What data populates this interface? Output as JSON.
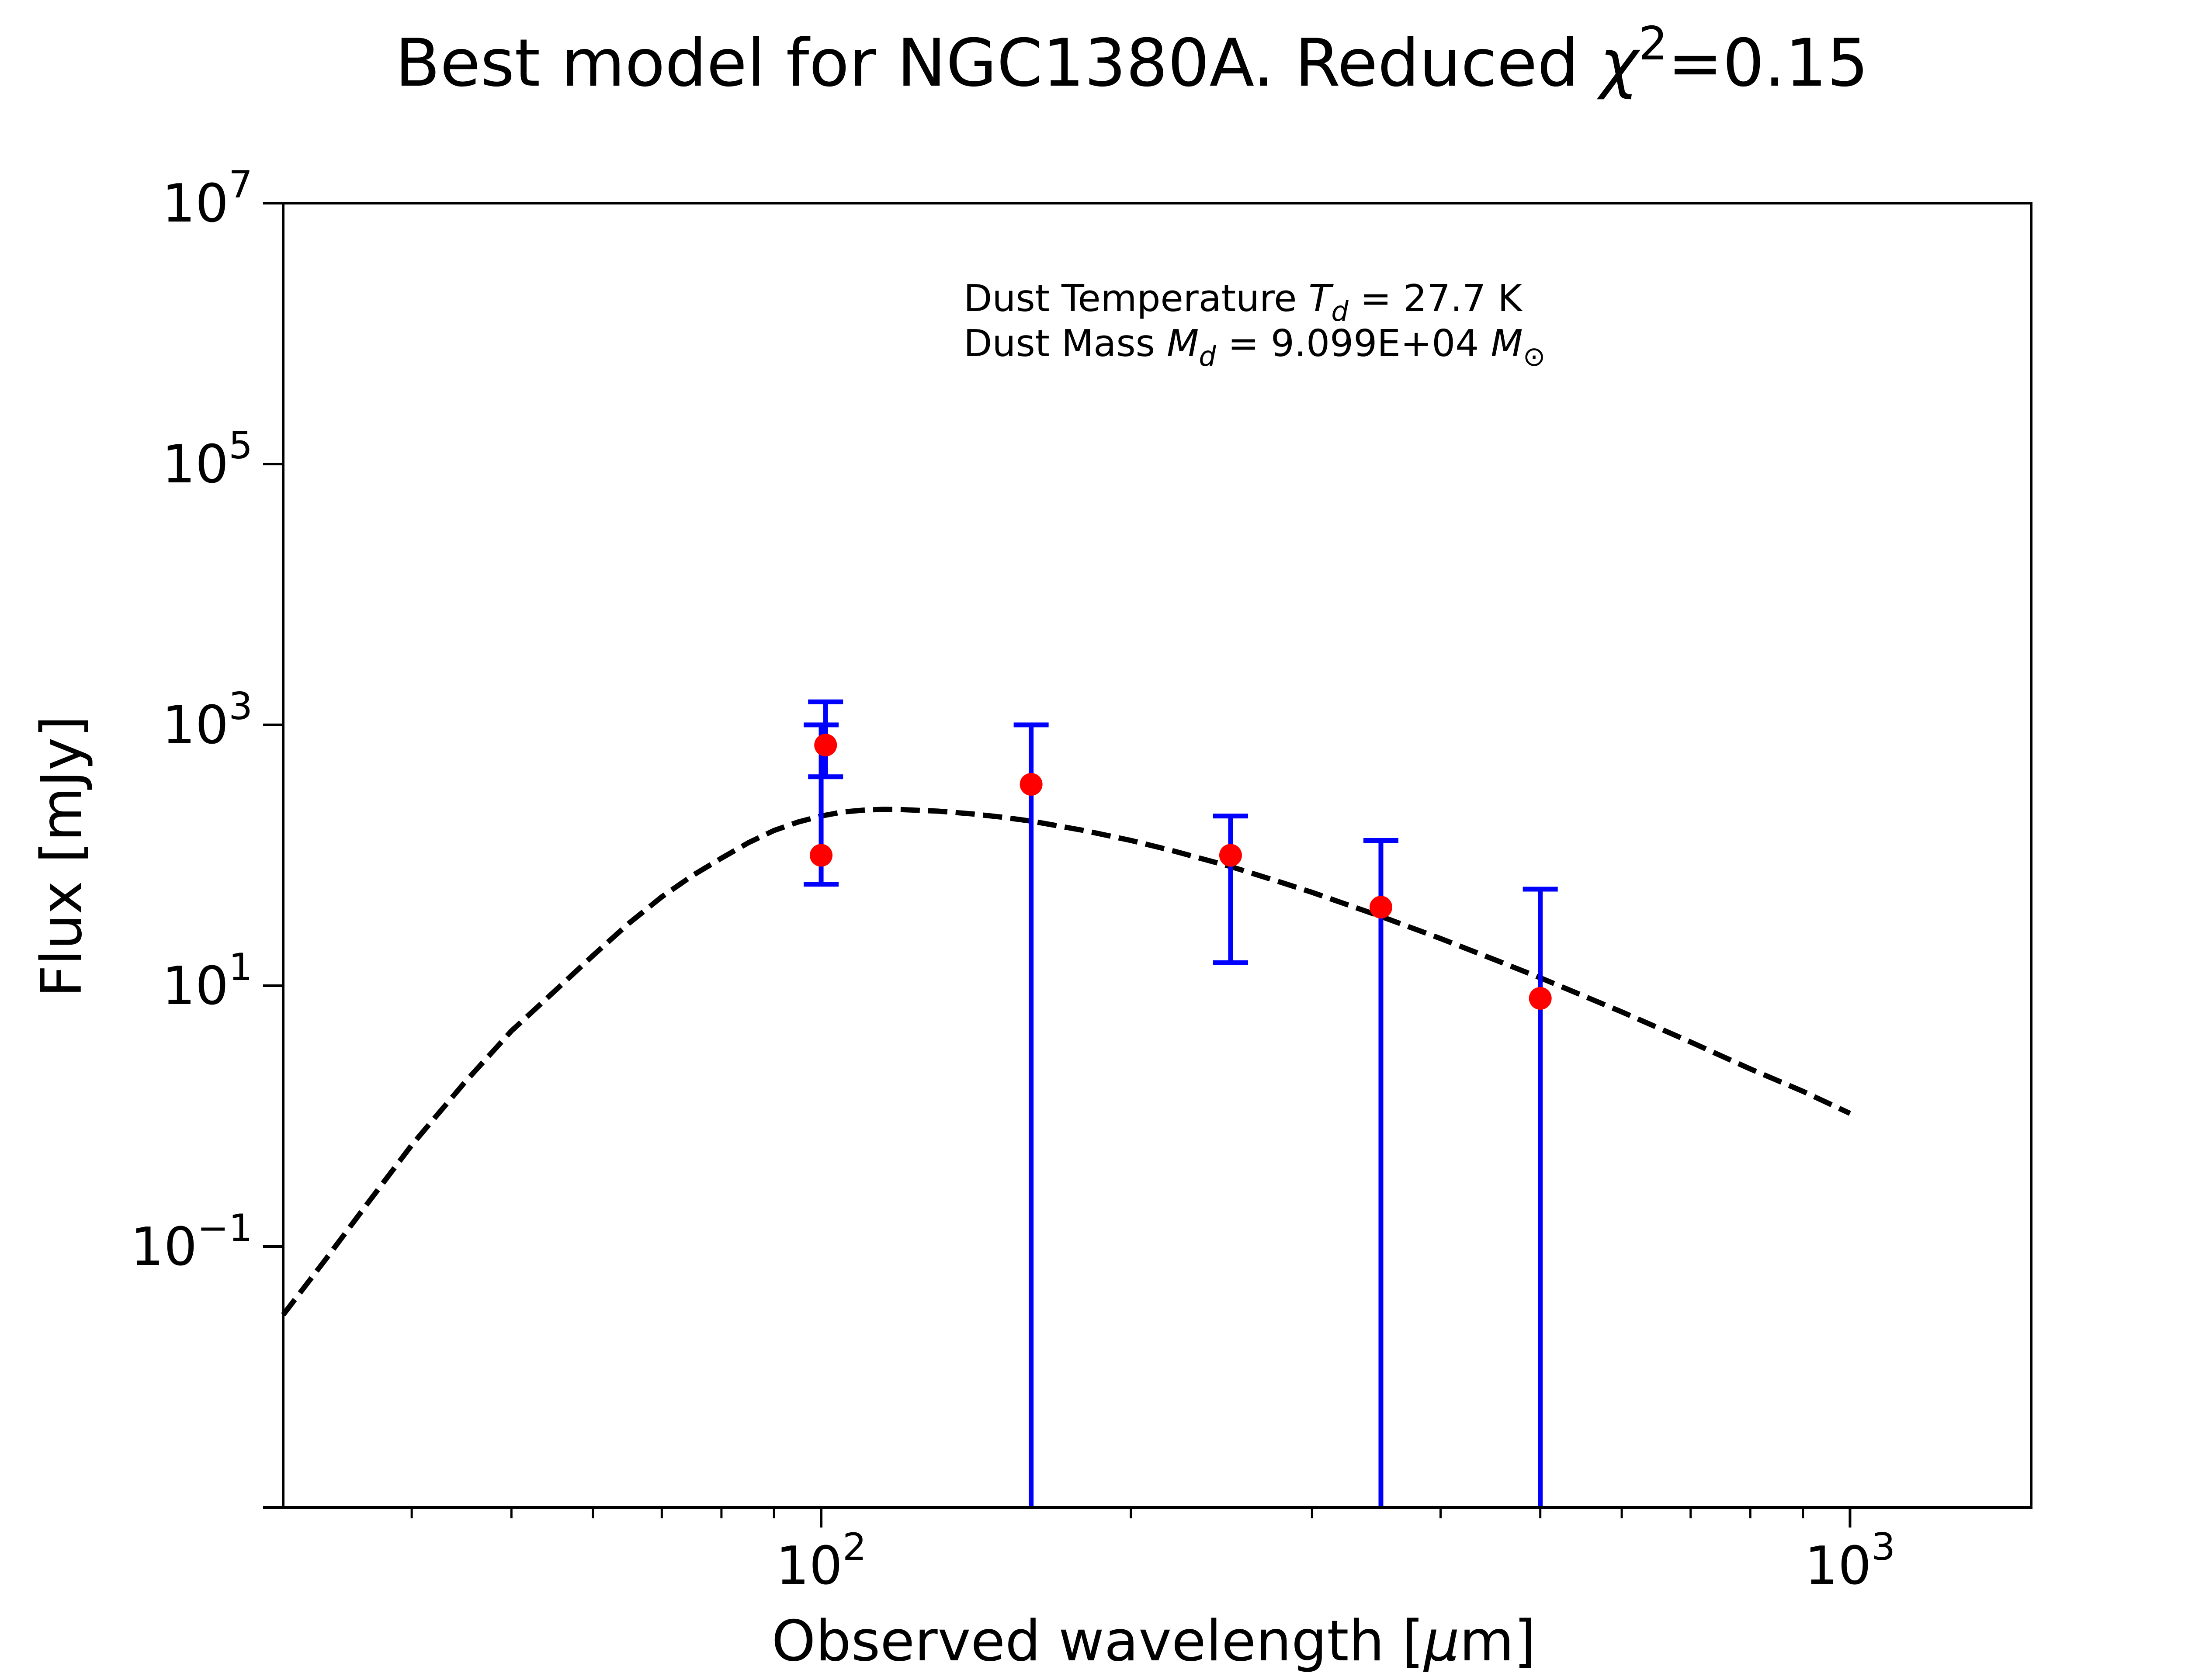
{
  "chart_data": {
    "type": "scatter",
    "title": {
      "prefix": "Best model for NGC1380A. Reduced ",
      "chi": "χ",
      "sup": "2",
      "suffix": "=0.15"
    },
    "xlabel": {
      "prefix": "Observed wavelength [",
      "mu": "μ",
      "suffix": "m]"
    },
    "ylabel": "Flux [mJy]",
    "x_scale": "log",
    "y_scale": "log",
    "xlim": [
      30,
      1500
    ],
    "ylim": [
      0.001,
      10000000
    ],
    "x_ticks": [
      {
        "value": 100,
        "base": "10",
        "exp": "2"
      },
      {
        "value": 1000,
        "base": "10",
        "exp": "3"
      }
    ],
    "y_ticks": [
      {
        "value": 0.1,
        "base": "10",
        "exp": "−1"
      },
      {
        "value": 10,
        "base": "10",
        "exp": "1"
      },
      {
        "value": 1000,
        "base": "10",
        "exp": "3"
      },
      {
        "value": 100000,
        "base": "10",
        "exp": "5"
      },
      {
        "value": 10000000,
        "base": "10",
        "exp": "7"
      }
    ],
    "annotation": {
      "line1": {
        "text": "Dust Temperature ",
        "sym": "T",
        "sub": "d",
        "value": " = 27.7 K"
      },
      "line2": {
        "text": "Dust Mass ",
        "sym": "M",
        "sub": "d",
        "value": " = 9.099E+04 ",
        "unit": "M",
        "unit_sub": "⊙"
      }
    },
    "observations": [
      {
        "x": 100,
        "y": 100,
        "yerr_low": 60,
        "yerr_high": 1000
      },
      {
        "x": 101,
        "y": 700,
        "yerr_low": 400,
        "yerr_high": 1500
      },
      {
        "x": 160,
        "y": 350,
        "yerr_low": 0.001,
        "yerr_high": 1000
      },
      {
        "x": 250,
        "y": 100,
        "yerr_low": 15,
        "yerr_high": 200
      },
      {
        "x": 350,
        "y": 40,
        "yerr_low": 0.001,
        "yerr_high": 130
      },
      {
        "x": 500,
        "y": 8,
        "yerr_low": 0.001,
        "yerr_high": 55
      }
    ],
    "model": {
      "style": "dashed",
      "color": "#000000",
      "points": [
        [
          30,
          0.03
        ],
        [
          33,
          0.08
        ],
        [
          36,
          0.2
        ],
        [
          40,
          0.6
        ],
        [
          45,
          1.8
        ],
        [
          50,
          4.5
        ],
        [
          55,
          9
        ],
        [
          60,
          17
        ],
        [
          65,
          30
        ],
        [
          70,
          48
        ],
        [
          75,
          70
        ],
        [
          80,
          95
        ],
        [
          85,
          125
        ],
        [
          90,
          155
        ],
        [
          95,
          180
        ],
        [
          100,
          200
        ],
        [
          105,
          215
        ],
        [
          110,
          222
        ],
        [
          115,
          225
        ],
        [
          120,
          224
        ],
        [
          130,
          218
        ],
        [
          140,
          208
        ],
        [
          150,
          196
        ],
        [
          160,
          183
        ],
        [
          180,
          155
        ],
        [
          200,
          130
        ],
        [
          220,
          108
        ],
        [
          250,
          82
        ],
        [
          280,
          62
        ],
        [
          300,
          52
        ],
        [
          350,
          34
        ],
        [
          400,
          23
        ],
        [
          450,
          16
        ],
        [
          500,
          11.5
        ],
        [
          600,
          6.3
        ],
        [
          700,
          3.7
        ],
        [
          800,
          2.3
        ],
        [
          900,
          1.55
        ],
        [
          1000,
          1.05
        ]
      ]
    },
    "colors": {
      "marker": "#ff0000",
      "errorbar": "#0000ff",
      "model": "#000000",
      "axes": "#000000"
    }
  }
}
